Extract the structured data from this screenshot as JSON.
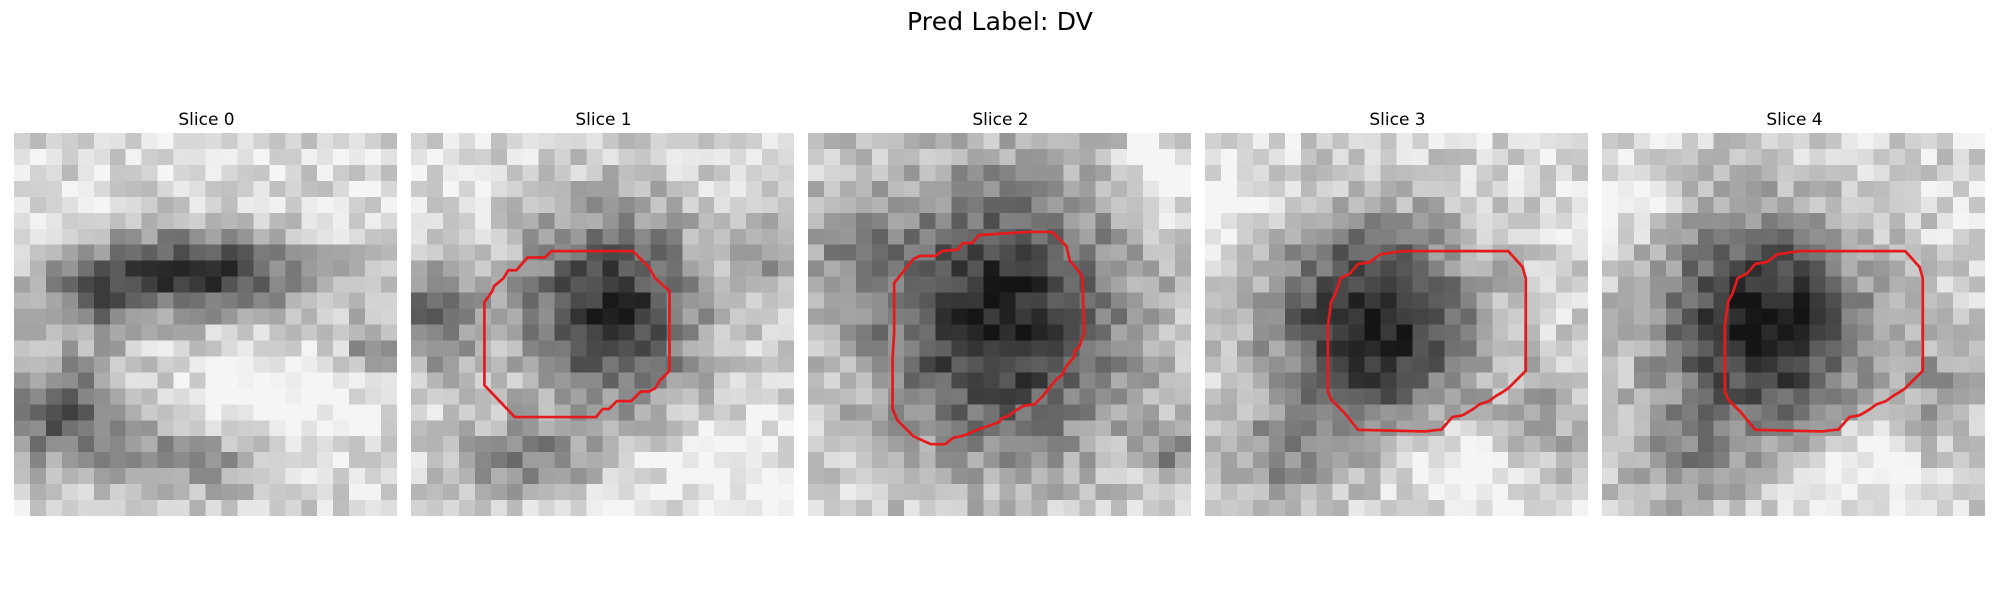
{
  "figure": {
    "title": "Pred Label: DV",
    "panels": [
      {
        "title": "Slice 0",
        "has_contour": false
      },
      {
        "title": "Slice 1",
        "has_contour": true
      },
      {
        "title": "Slice 2",
        "has_contour": true
      },
      {
        "title": "Slice 3",
        "has_contour": true
      },
      {
        "title": "Slice 4",
        "has_contour": true
      }
    ],
    "contour_color": "#e41a1c",
    "colormap": "grayscale"
  }
}
